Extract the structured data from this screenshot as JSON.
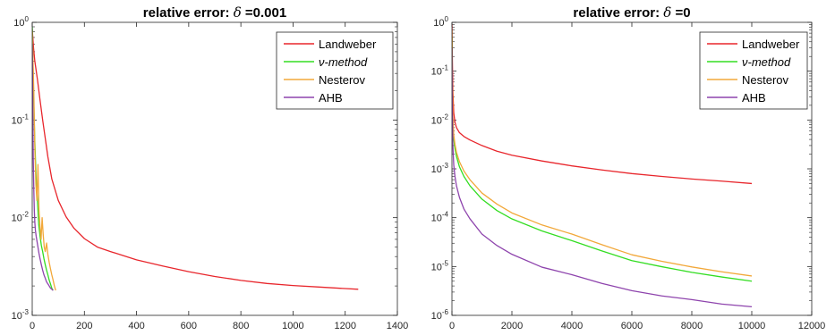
{
  "chart_data": [
    {
      "type": "line",
      "title_text": "relative error: ",
      "title_symbol": "δ",
      "title_value": " =0.001",
      "xlim": [
        0,
        1400
      ],
      "ylim": [
        0.001,
        1
      ],
      "yscale": "log",
      "xticks": [
        0,
        200,
        400,
        600,
        800,
        1000,
        1200,
        1400
      ],
      "xtick_labels": [
        "0",
        "200",
        "400",
        "600",
        "800",
        "1000",
        "1200",
        "1400"
      ],
      "yticks": [
        0.001,
        0.01,
        0.1,
        1
      ],
      "ytick_labels": [
        {
          "base": "10",
          "exp": "-3"
        },
        {
          "base": "10",
          "exp": "-2"
        },
        {
          "base": "10",
          "exp": "-1"
        },
        {
          "base": "10",
          "exp": "0"
        }
      ],
      "legend_position": "top-right",
      "series": [
        {
          "name": "Landweber",
          "color": "#e8262c",
          "x": [
            0,
            5,
            10,
            20,
            30,
            40,
            50,
            60,
            75,
            100,
            130,
            160,
            200,
            250,
            300,
            400,
            500,
            600,
            700,
            800,
            900,
            1000,
            1100,
            1200,
            1250
          ],
          "y": [
            0.85,
            0.55,
            0.4,
            0.26,
            0.16,
            0.1,
            0.065,
            0.042,
            0.025,
            0.015,
            0.0102,
            0.0078,
            0.0061,
            0.005,
            0.0045,
            0.0037,
            0.0032,
            0.0028,
            0.0025,
            0.00228,
            0.00212,
            0.00202,
            0.00195,
            0.00188,
            0.00185
          ]
        },
        {
          "name": "ν-method",
          "color": "#33dd22",
          "x": [
            0,
            3,
            6,
            10,
            15,
            20,
            25,
            30,
            35,
            40,
            45,
            50,
            55,
            60,
            65,
            70,
            75,
            80
          ],
          "y": [
            0.9,
            0.35,
            0.15,
            0.06,
            0.025,
            0.015,
            0.0085,
            0.0065,
            0.0052,
            0.0045,
            0.0038,
            0.0033,
            0.0029,
            0.0026,
            0.0023,
            0.0021,
            0.0019,
            0.0018
          ]
        },
        {
          "name": "Nesterov",
          "color": "#f2a83a",
          "x": [
            0,
            3,
            6,
            10,
            14,
            18,
            22,
            26,
            30,
            34,
            38,
            42,
            46,
            50,
            55,
            60,
            65,
            70,
            75,
            80,
            85,
            90
          ],
          "y": [
            0.8,
            0.4,
            0.2,
            0.05,
            0.022,
            0.015,
            0.035,
            0.012,
            0.008,
            0.006,
            0.01,
            0.0068,
            0.005,
            0.0045,
            0.0055,
            0.0042,
            0.0035,
            0.003,
            0.0026,
            0.0023,
            0.002,
            0.0018
          ]
        },
        {
          "name": "AHB",
          "color": "#8e44ad",
          "x": [
            0,
            2,
            4,
            6,
            8,
            10,
            12,
            15,
            18,
            22,
            26,
            30,
            35,
            40,
            45,
            50,
            55,
            60,
            65,
            70,
            75,
            80
          ],
          "y": [
            0.6,
            0.15,
            0.04,
            0.02,
            0.012,
            0.009,
            0.0075,
            0.0065,
            0.0058,
            0.005,
            0.0043,
            0.0038,
            0.0033,
            0.0029,
            0.0026,
            0.0024,
            0.0022,
            0.0021,
            0.002,
            0.0019,
            0.00185,
            0.0018
          ]
        }
      ]
    },
    {
      "type": "line",
      "title_text": "relative error: ",
      "title_symbol": "δ",
      "title_value": " =0",
      "xlim": [
        0,
        12000
      ],
      "ylim": [
        1e-06,
        1
      ],
      "yscale": "log",
      "xticks": [
        0,
        2000,
        4000,
        6000,
        8000,
        10000,
        12000
      ],
      "xtick_labels": [
        "0",
        "2000",
        "4000",
        "6000",
        "8000",
        "10000",
        "12000"
      ],
      "yticks": [
        1e-06,
        1e-05,
        0.0001,
        0.001,
        0.01,
        0.1,
        1
      ],
      "ytick_labels": [
        {
          "base": "10",
          "exp": "-6"
        },
        {
          "base": "10",
          "exp": "-5"
        },
        {
          "base": "10",
          "exp": "-4"
        },
        {
          "base": "10",
          "exp": "-3"
        },
        {
          "base": "10",
          "exp": "-2"
        },
        {
          "base": "10",
          "exp": "-1"
        },
        {
          "base": "10",
          "exp": "0"
        }
      ],
      "legend_position": "top-right",
      "series": [
        {
          "name": "Landweber",
          "color": "#e8262c",
          "x": [
            0,
            10,
            30,
            60,
            100,
            150,
            250,
            400,
            600,
            1000,
            1500,
            2000,
            3000,
            4000,
            5000,
            6000,
            7000,
            8000,
            9000,
            10000
          ],
          "y": [
            0.9,
            0.25,
            0.04,
            0.014,
            0.009,
            0.007,
            0.0055,
            0.0046,
            0.0039,
            0.003,
            0.0023,
            0.0019,
            0.00145,
            0.00115,
            0.00095,
            0.0008,
            0.0007,
            0.00062,
            0.00056,
            0.0005
          ]
        },
        {
          "name": "ν-method",
          "color": "#33dd22",
          "x": [
            0,
            10,
            30,
            60,
            100,
            150,
            250,
            400,
            600,
            1000,
            1500,
            2000,
            3000,
            4000,
            5000,
            6000,
            7000,
            8000,
            9000,
            10000
          ],
          "y": [
            0.5,
            0.05,
            0.008,
            0.004,
            0.0026,
            0.0018,
            0.0011,
            0.0007,
            0.00045,
            0.00024,
            0.00014,
            9.45e-05,
            5.35e-05,
            3.38e-05,
            2.09e-05,
            1.32e-05,
            9.9e-06,
            7.6e-06,
            6.1e-06,
            5e-06
          ]
        },
        {
          "name": "Nesterov",
          "color": "#f2a83a",
          "x": [
            0,
            10,
            30,
            60,
            100,
            150,
            250,
            400,
            600,
            1000,
            1500,
            2000,
            3000,
            4000,
            5000,
            6000,
            7000,
            8000,
            9000,
            10000
          ],
          "y": [
            0.7,
            0.08,
            0.012,
            0.005,
            0.0032,
            0.0022,
            0.0014,
            0.0009,
            0.0006,
            0.00032,
            0.00019,
            0.000125,
            7.1e-05,
            4.61e-05,
            2.8e-05,
            1.74e-05,
            1.28e-05,
            9.8e-06,
            7.8e-06,
            6.4e-06
          ]
        },
        {
          "name": "AHB",
          "color": "#8e44ad",
          "x": [
            0,
            10,
            30,
            60,
            100,
            150,
            250,
            400,
            600,
            1000,
            1500,
            2000,
            3000,
            4000,
            5000,
            6000,
            7000,
            8000,
            9000,
            10000
          ],
          "y": [
            0.3,
            0.02,
            0.003,
            0.0012,
            0.0007,
            0.00045,
            0.00026,
            0.00015,
            9.47e-05,
            4.62e-05,
            2.69e-05,
            1.78e-05,
            9.7e-06,
            6.8e-06,
            4.5e-06,
            3.2e-06,
            2.5e-06,
            2.1e-06,
            1.7e-06,
            1.5e-06
          ]
        }
      ]
    }
  ]
}
